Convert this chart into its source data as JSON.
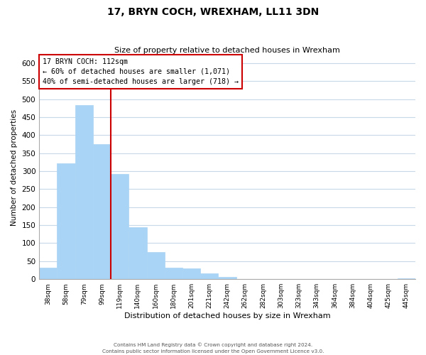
{
  "title": "17, BRYN COCH, WREXHAM, LL11 3DN",
  "subtitle": "Size of property relative to detached houses in Wrexham",
  "xlabel": "Distribution of detached houses by size in Wrexham",
  "ylabel": "Number of detached properties",
  "bar_labels": [
    "38sqm",
    "58sqm",
    "79sqm",
    "99sqm",
    "119sqm",
    "140sqm",
    "160sqm",
    "180sqm",
    "201sqm",
    "221sqm",
    "242sqm",
    "262sqm",
    "282sqm",
    "303sqm",
    "323sqm",
    "343sqm",
    "364sqm",
    "384sqm",
    "404sqm",
    "425sqm",
    "445sqm"
  ],
  "bar_values": [
    32,
    322,
    483,
    375,
    292,
    145,
    75,
    31,
    29,
    16,
    6,
    0,
    0,
    0,
    0,
    0,
    0,
    0,
    0,
    0,
    2
  ],
  "bar_color": "#aad4f5",
  "bar_edge_color": "#aad4f5",
  "vline_x": 3.5,
  "vline_color": "#cc0000",
  "annotation_title": "17 BRYN COCH: 112sqm",
  "annotation_line1": "← 60% of detached houses are smaller (1,071)",
  "annotation_line2": "40% of semi-detached houses are larger (718) →",
  "annotation_box_color": "#ffffff",
  "annotation_box_edge": "#cc0000",
  "ylim": [
    0,
    620
  ],
  "yticks": [
    0,
    50,
    100,
    150,
    200,
    250,
    300,
    350,
    400,
    450,
    500,
    550,
    600
  ],
  "footer_line1": "Contains HM Land Registry data © Crown copyright and database right 2024.",
  "footer_line2": "Contains public sector information licensed under the Open Government Licence v3.0.",
  "bg_color": "#ffffff",
  "grid_color": "#c8d8e8"
}
